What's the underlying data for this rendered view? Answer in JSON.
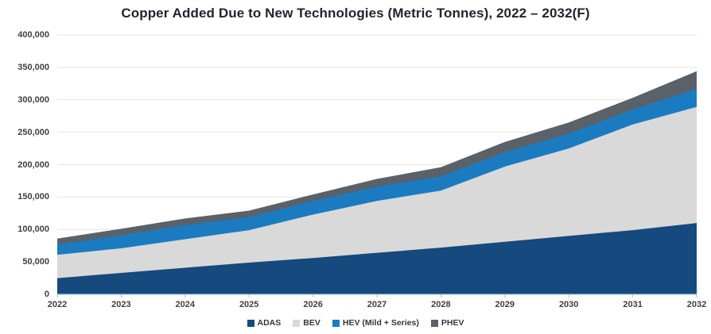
{
  "chart": {
    "title": "Copper Added Due to New Technologies (Metric Tonnes), 2022 – 2032(F)"
  },
  "chart_data": {
    "type": "area",
    "stacked": true,
    "title": "Copper Added Due to New Technologies (Metric Tonnes), 2022 – 2032(F)",
    "x": [
      "2022",
      "2023",
      "2024",
      "2025",
      "2026",
      "2027",
      "2028",
      "2029",
      "2030",
      "2031",
      "2032"
    ],
    "series": [
      {
        "name": "ADAS",
        "color": "#16497D",
        "values": [
          25000,
          33000,
          41000,
          49000,
          56000,
          64000,
          72000,
          81000,
          90000,
          99000,
          110000
        ]
      },
      {
        "name": "BEV",
        "color": "#D9D9D9",
        "values": [
          36000,
          38000,
          44000,
          50000,
          67000,
          80000,
          88000,
          116000,
          135000,
          163000,
          179000
        ]
      },
      {
        "name": "HEV (Mild + Series)",
        "color": "#1B7BC0",
        "values": [
          16000,
          20000,
          22000,
          20000,
          21000,
          22000,
          22000,
          22000,
          23000,
          23000,
          28000
        ]
      },
      {
        "name": "PHEV",
        "color": "#5A6169",
        "values": [
          9000,
          10000,
          10000,
          10000,
          10000,
          12000,
          14000,
          16000,
          17000,
          18000,
          27000
        ]
      }
    ],
    "ylim": [
      0,
      400000
    ],
    "y_ticks": [
      {
        "value": 0,
        "label": "0"
      },
      {
        "value": 50000,
        "label": "50,000"
      },
      {
        "value": 100000,
        "label": "100,000"
      },
      {
        "value": 150000,
        "label": "150,000"
      },
      {
        "value": 200000,
        "label": "200,000"
      },
      {
        "value": 250000,
        "label": "250,000"
      },
      {
        "value": 300000,
        "label": "300,000"
      },
      {
        "value": 350000,
        "label": "350,000"
      },
      {
        "value": 400000,
        "label": "400,000"
      }
    ],
    "grid": true,
    "legend_position": "bottom",
    "xlabel": "",
    "ylabel": "",
    "gridline_color": "#E2E2E2",
    "axis_color": "#9DC3E6"
  }
}
